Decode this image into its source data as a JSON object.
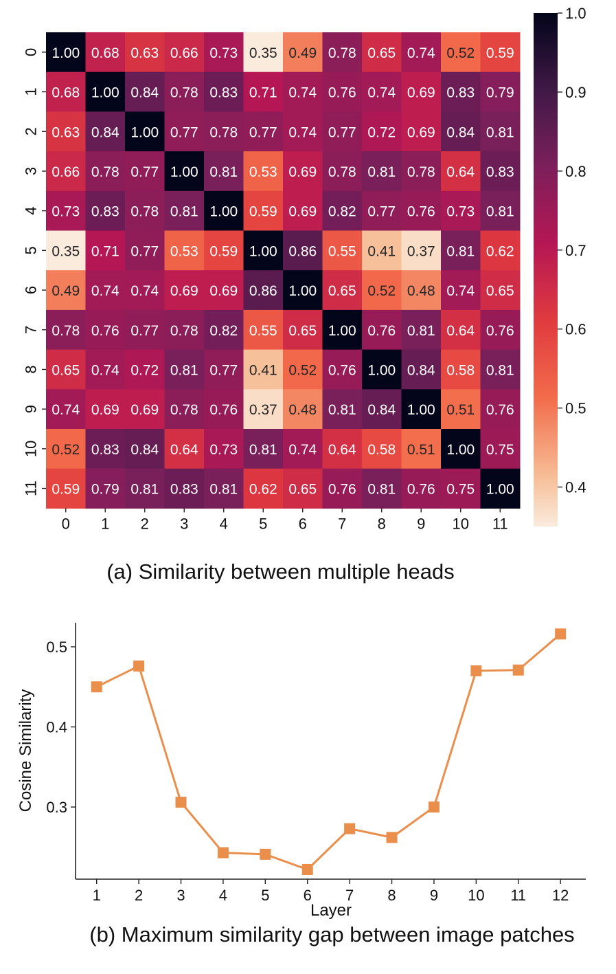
{
  "chart_data": [
    {
      "type": "heatmap",
      "caption": "(a) Similarity between multiple heads",
      "x_ticks": [
        "0",
        "1",
        "2",
        "3",
        "4",
        "5",
        "6",
        "7",
        "8",
        "9",
        "10",
        "11"
      ],
      "y_ticks": [
        "0",
        "1",
        "2",
        "3",
        "4",
        "5",
        "6",
        "7",
        "8",
        "9",
        "10",
        "11"
      ],
      "values": [
        [
          1.0,
          0.68,
          0.63,
          0.66,
          0.73,
          0.35,
          0.49,
          0.78,
          0.65,
          0.74,
          0.52,
          0.59
        ],
        [
          0.68,
          1.0,
          0.84,
          0.78,
          0.83,
          0.71,
          0.74,
          0.76,
          0.74,
          0.69,
          0.83,
          0.79
        ],
        [
          0.63,
          0.84,
          1.0,
          0.77,
          0.78,
          0.77,
          0.74,
          0.77,
          0.72,
          0.69,
          0.84,
          0.81
        ],
        [
          0.66,
          0.78,
          0.77,
          1.0,
          0.81,
          0.53,
          0.69,
          0.78,
          0.81,
          0.78,
          0.64,
          0.83
        ],
        [
          0.73,
          0.83,
          0.78,
          0.81,
          1.0,
          0.59,
          0.69,
          0.82,
          0.77,
          0.76,
          0.73,
          0.81
        ],
        [
          0.35,
          0.71,
          0.77,
          0.53,
          0.59,
          1.0,
          0.86,
          0.55,
          0.41,
          0.37,
          0.81,
          0.62
        ],
        [
          0.49,
          0.74,
          0.74,
          0.69,
          0.69,
          0.86,
          1.0,
          0.65,
          0.52,
          0.48,
          0.74,
          0.65
        ],
        [
          0.78,
          0.76,
          0.77,
          0.78,
          0.82,
          0.55,
          0.65,
          1.0,
          0.76,
          0.81,
          0.64,
          0.76
        ],
        [
          0.65,
          0.74,
          0.72,
          0.81,
          0.77,
          0.41,
          0.52,
          0.76,
          1.0,
          0.84,
          0.58,
          0.81
        ],
        [
          0.74,
          0.69,
          0.69,
          0.78,
          0.76,
          0.37,
          0.48,
          0.81,
          0.84,
          1.0,
          0.51,
          0.76
        ],
        [
          0.52,
          0.83,
          0.84,
          0.64,
          0.73,
          0.81,
          0.74,
          0.64,
          0.58,
          0.51,
          1.0,
          0.75
        ],
        [
          0.59,
          0.79,
          0.81,
          0.83,
          0.81,
          0.62,
          0.65,
          0.76,
          0.81,
          0.76,
          0.75,
          1.0
        ]
      ],
      "colorbar": {
        "range": [
          0.35,
          1.0
        ],
        "ticks": [
          0.4,
          0.5,
          0.6,
          0.7,
          0.8,
          0.9,
          1.0
        ],
        "tick_labels": [
          "0.4",
          "0.5",
          "0.6",
          "0.7",
          "0.8",
          "0.9",
          "1.0"
        ],
        "colormap": "rocket_r"
      }
    },
    {
      "type": "line",
      "caption": "(b) Maximum similarity gap between image patches",
      "xlabel": "Layer",
      "ylabel": "Cosine Similarity",
      "x": [
        1,
        2,
        3,
        4,
        5,
        6,
        7,
        8,
        9,
        10,
        11,
        12
      ],
      "x_tick_labels": [
        "1",
        "2",
        "3",
        "4",
        "5",
        "6",
        "7",
        "8",
        "9",
        "10",
        "11",
        "12"
      ],
      "y": [
        0.45,
        0.476,
        0.306,
        0.243,
        0.241,
        0.222,
        0.273,
        0.262,
        0.3,
        0.47,
        0.471,
        0.516
      ],
      "y_ticks": [
        0.3,
        0.4,
        0.5
      ],
      "y_tick_labels": [
        "0.3",
        "0.4",
        "0.5"
      ],
      "ylim": [
        0.21,
        0.53
      ],
      "xlim": [
        0.5,
        12.6
      ],
      "marker": "square",
      "color": "#ea8e4c"
    }
  ]
}
